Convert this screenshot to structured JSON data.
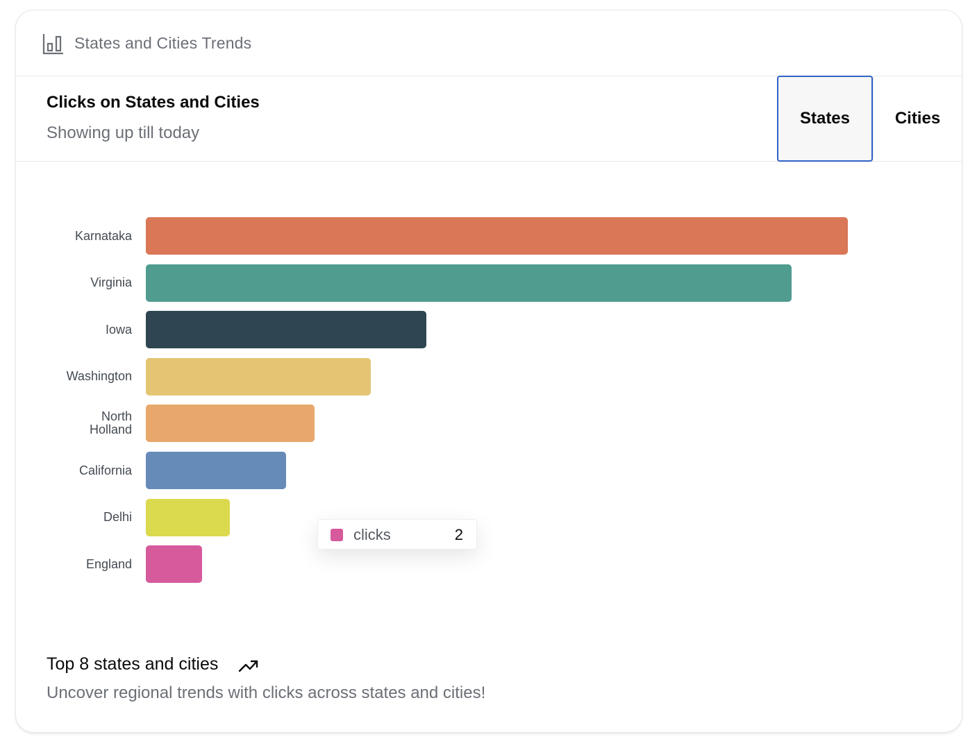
{
  "card": {
    "title": "States and Cities Trends",
    "icon": "bar-chart-icon"
  },
  "header": {
    "title": "Clicks on States and Cities",
    "subtitle": "Showing up till today"
  },
  "tabs": [
    {
      "label": "States",
      "active": true
    },
    {
      "label": "Cities",
      "active": false
    }
  ],
  "chart_data": {
    "type": "bar",
    "orientation": "horizontal",
    "categories": [
      "Karnataka",
      "Virginia",
      "Iowa",
      "Washington",
      "North Holland",
      "California",
      "Delhi",
      "England"
    ],
    "category_lines": [
      [
        "Karnataka"
      ],
      [
        "Virginia"
      ],
      [
        "Iowa"
      ],
      [
        "Washington"
      ],
      [
        "North",
        "Holland"
      ],
      [
        "California"
      ],
      [
        "Delhi"
      ],
      [
        "England"
      ]
    ],
    "series": [
      {
        "values": [
          25,
          23,
          10,
          8,
          6,
          5,
          3,
          2
        ]
      }
    ],
    "colors": [
      "#d97757",
      "#509c8f",
      "#2f4652",
      "#e3c574",
      "#e8a76b",
      "#678bb9",
      "#dbd94e",
      "#d65a9c"
    ],
    "xlim": [
      0,
      25
    ],
    "grid": false,
    "legend": "none"
  },
  "tooltip": {
    "label": "clicks",
    "value": "2",
    "color": "#d65a9c"
  },
  "footer": {
    "title": "Top 8 states and cities",
    "subtitle": "Uncover regional trends with clicks across states and cities!",
    "icon": "trending-up-icon"
  },
  "colors": {
    "accent": "#2f62c5",
    "muted_text": "#6b6f76"
  }
}
